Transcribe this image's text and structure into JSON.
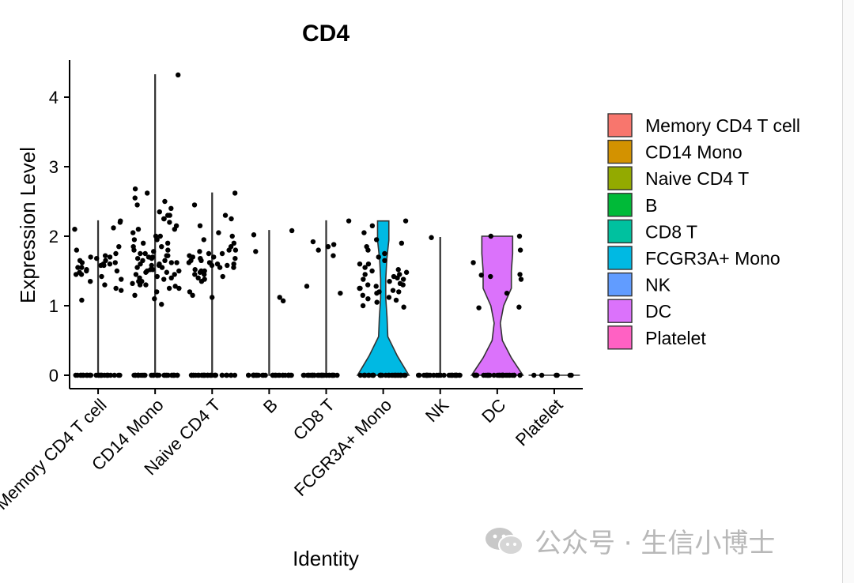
{
  "chart_data": {
    "type": "violin",
    "title": "CD4",
    "xlabel": "Identity",
    "ylabel": "Expression Level",
    "ylim": [
      0,
      4.5
    ],
    "yticks": [
      0,
      1,
      2,
      3,
      4
    ],
    "legend_position": "right",
    "categories": [
      "Memory CD4 T cell",
      "CD14 Mono",
      "Naive CD4 T",
      "B",
      "CD8 T",
      "FCGR3A+ Mono",
      "NK",
      "DC",
      "Platelet"
    ],
    "colors": [
      "#F8766D",
      "#D39200",
      "#93AA00",
      "#00BA38",
      "#00C19F",
      "#00B9E3",
      "#619CFF",
      "#DB72FB",
      "#FF61C3"
    ],
    "max_values": [
      2.22,
      4.32,
      2.62,
      2.08,
      2.22,
      2.22,
      1.98,
      2.0,
      0.0
    ],
    "density": [
      [
        0.01,
        0.01,
        0.01,
        0.01,
        0.01,
        0.01,
        0.01,
        0.01,
        0.01
      ],
      [
        0.01,
        0.01,
        0.01,
        0.01,
        0.01,
        0.01,
        0.01,
        0.01,
        0.01
      ],
      [
        0.01,
        0.01,
        0.01,
        0.01,
        0.01,
        0.01,
        0.01,
        0.01,
        0.01
      ],
      [
        0.01,
        0.01,
        0.01,
        0.01,
        0.01,
        0.01,
        0.01,
        0.01,
        0.01
      ],
      [
        0.01,
        0.01,
        0.01,
        0.01,
        0.01,
        0.01,
        0.01,
        0.01,
        0.01
      ],
      [
        1.0,
        0.55,
        0.18,
        0.15,
        0.1,
        0.1,
        0.14,
        0.22,
        0.22
      ],
      [
        0.01,
        0.01,
        0.01,
        0.01,
        0.01,
        0.01,
        0.01,
        0.01,
        0.01
      ],
      [
        1.0,
        0.55,
        0.2,
        0.12,
        0.25,
        0.55,
        0.55,
        0.6,
        0.6
      ],
      [
        0.0,
        0.0,
        0.0,
        0.0,
        0.0,
        0.0,
        0.0,
        0.0,
        0.0
      ]
    ],
    "points": [
      [
        [
          1.22,
          0
        ],
        [
          1.08,
          0
        ],
        [
          1.38,
          0
        ],
        [
          1.45,
          0
        ],
        [
          1.5,
          0
        ],
        [
          1.52,
          0
        ],
        [
          1.55,
          0
        ],
        [
          1.58,
          0
        ],
        [
          1.6,
          0
        ],
        [
          1.62,
          0
        ],
        [
          1.65,
          0
        ],
        [
          1.68,
          0
        ],
        [
          1.7,
          0
        ],
        [
          1.72,
          0
        ],
        [
          1.75,
          0
        ],
        [
          1.8,
          0
        ],
        [
          1.85,
          0
        ],
        [
          1.45,
          0
        ],
        [
          1.5,
          0
        ],
        [
          1.55,
          0
        ],
        [
          1.62,
          0
        ],
        [
          1.65,
          0
        ],
        [
          1.3,
          0
        ],
        [
          1.35,
          0
        ],
        [
          1.58,
          0
        ],
        [
          1.6,
          0
        ],
        [
          1.7,
          0
        ],
        [
          2.2,
          0
        ],
        [
          2.22,
          0
        ],
        [
          2.12,
          0
        ],
        [
          2.1,
          0
        ],
        [
          1.25,
          0
        ],
        [
          1.42,
          0
        ],
        [
          1.48,
          0
        ]
      ],
      [
        [
          4.32,
          0
        ],
        [
          2.68,
          0
        ],
        [
          2.62,
          0
        ],
        [
          2.55,
          0
        ],
        [
          2.5,
          0
        ],
        [
          2.45,
          0
        ],
        [
          2.4,
          0
        ],
        [
          2.35,
          0
        ],
        [
          2.3,
          0
        ],
        [
          2.25,
          0
        ],
        [
          2.2,
          0
        ],
        [
          2.15,
          0
        ],
        [
          2.1,
          0
        ],
        [
          2.05,
          0
        ],
        [
          2.0,
          0
        ],
        [
          1.95,
          0
        ],
        [
          1.9,
          0
        ],
        [
          1.85,
          0
        ],
        [
          1.8,
          0
        ],
        [
          1.78,
          0
        ],
        [
          1.75,
          0
        ],
        [
          1.72,
          0
        ],
        [
          1.7,
          0
        ],
        [
          1.68,
          0
        ],
        [
          1.65,
          0
        ],
        [
          1.62,
          0
        ],
        [
          1.6,
          0
        ],
        [
          1.58,
          0
        ],
        [
          1.55,
          0
        ],
        [
          1.52,
          0
        ],
        [
          1.5,
          0
        ],
        [
          1.48,
          0
        ],
        [
          1.45,
          0
        ],
        [
          1.42,
          0
        ],
        [
          1.4,
          0
        ],
        [
          1.38,
          0
        ],
        [
          1.35,
          0
        ],
        [
          1.32,
          0
        ],
        [
          1.3,
          0
        ],
        [
          1.28,
          0
        ],
        [
          1.25,
          0
        ],
        [
          1.2,
          0
        ],
        [
          1.15,
          0
        ],
        [
          1.1,
          0
        ],
        [
          1.02,
          0
        ],
        [
          1.6,
          0
        ],
        [
          1.55,
          0
        ],
        [
          1.7,
          0
        ],
        [
          1.8,
          0
        ],
        [
          1.5,
          0
        ],
        [
          1.65,
          0
        ],
        [
          1.75,
          0
        ],
        [
          1.9,
          0
        ],
        [
          2.0,
          0
        ],
        [
          1.45,
          0
        ],
        [
          1.35,
          0
        ],
        [
          1.4,
          0
        ],
        [
          1.85,
          0
        ],
        [
          2.1,
          0
        ],
        [
          1.62,
          0
        ],
        [
          1.58,
          0
        ],
        [
          1.48,
          0
        ],
        [
          1.52,
          0
        ],
        [
          1.68,
          0
        ],
        [
          1.72,
          0
        ],
        [
          1.3,
          0
        ],
        [
          1.25,
          0
        ],
        [
          2.25,
          0
        ],
        [
          2.3,
          0
        ],
        [
          1.95,
          0
        ]
      ],
      [
        [
          2.62,
          0
        ],
        [
          2.45,
          0
        ],
        [
          2.3,
          0
        ],
        [
          2.25,
          0
        ],
        [
          2.15,
          0
        ],
        [
          2.05,
          0
        ],
        [
          2.0,
          0
        ],
        [
          1.95,
          0
        ],
        [
          1.9,
          0
        ],
        [
          1.85,
          0
        ],
        [
          1.8,
          0
        ],
        [
          1.78,
          0
        ],
        [
          1.75,
          0
        ],
        [
          1.72,
          0
        ],
        [
          1.7,
          0
        ],
        [
          1.68,
          0
        ],
        [
          1.65,
          0
        ],
        [
          1.62,
          0
        ],
        [
          1.6,
          0
        ],
        [
          1.58,
          0
        ],
        [
          1.55,
          0
        ],
        [
          1.52,
          0
        ],
        [
          1.5,
          0
        ],
        [
          1.48,
          0
        ],
        [
          1.45,
          0
        ],
        [
          1.42,
          0
        ],
        [
          1.4,
          0
        ],
        [
          1.38,
          0
        ],
        [
          1.35,
          0
        ],
        [
          1.2,
          0
        ],
        [
          1.15,
          0
        ],
        [
          1.12,
          0
        ],
        [
          1.65,
          0
        ],
        [
          1.6,
          0
        ],
        [
          1.55,
          0
        ],
        [
          1.7,
          0
        ],
        [
          1.75,
          0
        ],
        [
          1.5,
          0
        ],
        [
          1.45,
          0
        ],
        [
          1.8,
          0
        ],
        [
          1.62,
          0
        ],
        [
          1.58,
          0
        ],
        [
          1.68,
          0
        ]
      ],
      [
        [
          2.08,
          0
        ],
        [
          2.02,
          0
        ],
        [
          1.78,
          0
        ],
        [
          1.12,
          0
        ],
        [
          1.07,
          0
        ]
      ],
      [
        [
          2.22,
          0
        ],
        [
          1.92,
          0
        ],
        [
          1.88,
          0
        ],
        [
          1.85,
          0
        ],
        [
          1.8,
          0
        ],
        [
          1.72,
          0
        ],
        [
          1.28,
          0
        ],
        [
          1.18,
          0
        ]
      ],
      [
        [
          2.22,
          0
        ],
        [
          2.15,
          0
        ],
        [
          2.05,
          0
        ],
        [
          1.95,
          0
        ],
        [
          1.9,
          0
        ],
        [
          1.85,
          0
        ],
        [
          1.8,
          0
        ],
        [
          1.75,
          0
        ],
        [
          1.7,
          0
        ],
        [
          1.65,
          0
        ],
        [
          1.6,
          0
        ],
        [
          1.55,
          0
        ],
        [
          1.5,
          0
        ],
        [
          1.48,
          0
        ],
        [
          1.45,
          0
        ],
        [
          1.42,
          0
        ],
        [
          1.4,
          0
        ],
        [
          1.38,
          0
        ],
        [
          1.35,
          0
        ],
        [
          1.32,
          0
        ],
        [
          1.3,
          0
        ],
        [
          1.28,
          0
        ],
        [
          1.25,
          0
        ],
        [
          1.22,
          0
        ],
        [
          1.2,
          0
        ],
        [
          1.18,
          0
        ],
        [
          1.15,
          0
        ],
        [
          1.12,
          0
        ],
        [
          1.1,
          0
        ],
        [
          1.08,
          0
        ],
        [
          1.05,
          0
        ],
        [
          1.0,
          0
        ],
        [
          0.98,
          0
        ],
        [
          1.52,
          0
        ],
        [
          1.45,
          0
        ],
        [
          1.38,
          0
        ],
        [
          1.3,
          0
        ],
        [
          1.25,
          0
        ],
        [
          1.2,
          0
        ],
        [
          1.6,
          0
        ]
      ],
      [
        [
          1.98,
          0
        ]
      ],
      [
        [
          2.0,
          0
        ],
        [
          2.0,
          0
        ],
        [
          1.8,
          0
        ],
        [
          1.62,
          0
        ],
        [
          1.45,
          0
        ],
        [
          1.44,
          0
        ],
        [
          1.42,
          0
        ],
        [
          1.38,
          0
        ],
        [
          1.18,
          0
        ],
        [
          0.98,
          0
        ],
        [
          0.97,
          0
        ]
      ],
      []
    ],
    "zero_points_per_group": [
      28,
      30,
      30,
      30,
      30,
      30,
      28,
      30,
      6
    ]
  },
  "watermark": {
    "text": "公众号 · 生信小博士",
    "icon": "wechat-icon"
  }
}
